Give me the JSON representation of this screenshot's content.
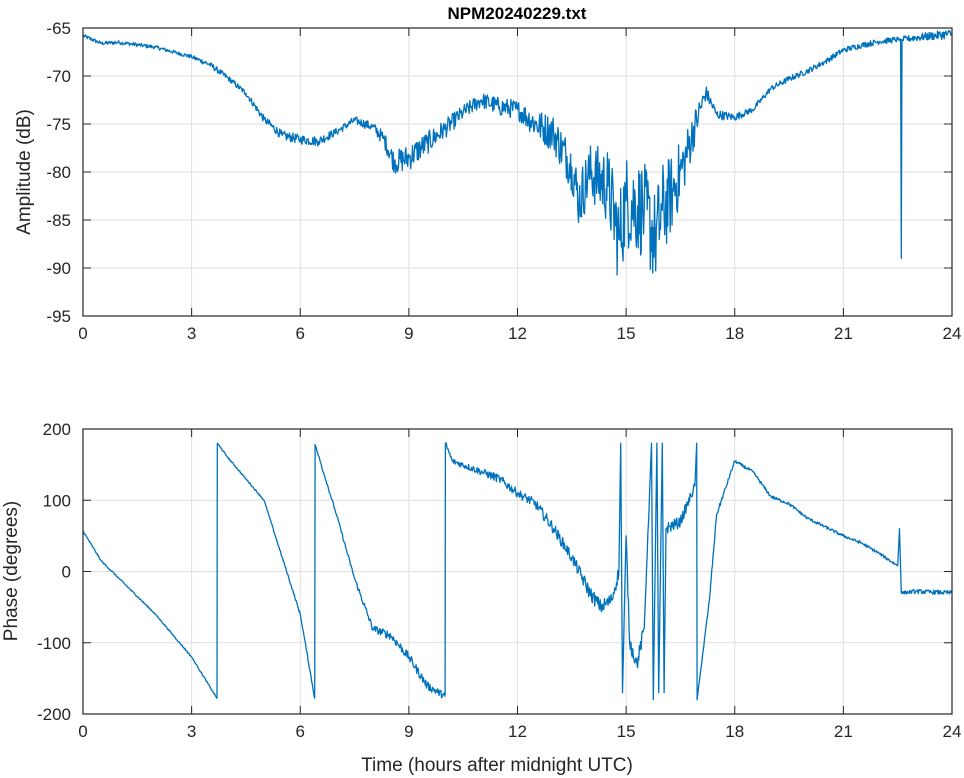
{
  "chart_data": [
    {
      "type": "line",
      "title": "NPM20240229.txt",
      "xlabel": "",
      "ylabel": "Amplitude (dB)",
      "xlim": [
        0,
        24
      ],
      "ylim": [
        -95,
        -65
      ],
      "grid": true,
      "xticks": [
        "0",
        "3",
        "6",
        "9",
        "12",
        "15",
        "18",
        "21",
        "24"
      ],
      "yticks": [
        "-65",
        "-70",
        "-75",
        "-80",
        "-85",
        "-90",
        "-95"
      ],
      "color": "#0072BD",
      "x": [
        0,
        0.5,
        1,
        2,
        3,
        3.5,
        4,
        4.5,
        5,
        5.5,
        6,
        6.5,
        7,
        7.5,
        8,
        8.3,
        8.6,
        9,
        9.5,
        10,
        10.5,
        11,
        11.5,
        12,
        12.5,
        13,
        13.5,
        13.7,
        14,
        14.5,
        14.8,
        15,
        15.5,
        15.8,
        16,
        16.3,
        16.6,
        17,
        17.2,
        17.5,
        18,
        18.5,
        19,
        19.5,
        20,
        20.5,
        21,
        21.5,
        22,
        22.5,
        22.58,
        22.6,
        22.62,
        23,
        24
      ],
      "y": [
        -65.8,
        -66.6,
        -66.5,
        -67,
        -68,
        -68.8,
        -70.2,
        -71.8,
        -74.5,
        -76.2,
        -76.6,
        -76.8,
        -75.8,
        -74.6,
        -75.3,
        -76.5,
        -79,
        -78.5,
        -77,
        -75.5,
        -73.8,
        -72.5,
        -73.2,
        -73.5,
        -75,
        -76,
        -79.5,
        -83,
        -80,
        -81.5,
        -87,
        -83,
        -84,
        -87,
        -84,
        -82,
        -79,
        -74,
        -71.7,
        -74,
        -74.3,
        -73.5,
        -71.3,
        -70.3,
        -69.5,
        -68.5,
        -67.3,
        -66.8,
        -66.4,
        -66.2,
        -66.2,
        -89,
        -66.2,
        -66,
        -65.6
      ],
      "noise": [
        0.2,
        0.2,
        0.2,
        0.2,
        0.2,
        0.3,
        0.3,
        0.3,
        0.4,
        0.5,
        0.5,
        0.5,
        0.4,
        0.4,
        0.5,
        0.8,
        1.2,
        1.4,
        1.2,
        1,
        0.8,
        0.8,
        1,
        1,
        1.5,
        2,
        2.5,
        3,
        3,
        4,
        5,
        5,
        5,
        5,
        5,
        4,
        3,
        1.5,
        0.8,
        0.5,
        0.4,
        0.3,
        0.3,
        0.3,
        0.3,
        0.3,
        0.3,
        0.3,
        0.3,
        0.3,
        0,
        0,
        0.3,
        0.4,
        0.5
      ]
    },
    {
      "type": "line",
      "title": "",
      "xlabel": "Time (hours after midnight UTC)",
      "ylabel": "Phase (degrees)",
      "xlim": [
        0,
        24
      ],
      "ylim": [
        -200,
        200
      ],
      "grid": true,
      "xticks": [
        "0",
        "3",
        "6",
        "9",
        "12",
        "15",
        "18",
        "21",
        "24"
      ],
      "yticks": [
        "200",
        "100",
        "0",
        "-100",
        "-200"
      ],
      "color": "#0072BD",
      "x": [
        0,
        0.5,
        1,
        2,
        3,
        3.7,
        3.71,
        4,
        5,
        6,
        6.4,
        6.41,
        7,
        7.5,
        8,
        8.5,
        9,
        9.5,
        10,
        10.01,
        10.2,
        11,
        11.5,
        12,
        12.5,
        13,
        13.5,
        14,
        14.3,
        14.6,
        14.8,
        14.85,
        14.9,
        15,
        15.1,
        15.3,
        15.5,
        15.7,
        15.75,
        15.85,
        15.9,
        16.0,
        16.05,
        16.1,
        16.5,
        16.9,
        16.95,
        16.96,
        17.3,
        17.5,
        18,
        18.5,
        19,
        19.5,
        20,
        21,
        21.5,
        22,
        22.5,
        22.55,
        22.6,
        23,
        24
      ],
      "y": [
        57,
        15,
        -10,
        -60,
        -120,
        -178,
        180,
        160,
        100,
        -60,
        -178,
        178,
        80,
        -10,
        -80,
        -90,
        -120,
        -160,
        -175,
        180,
        155,
        140,
        130,
        110,
        95,
        60,
        20,
        -30,
        -50,
        -40,
        0,
        180,
        -170,
        50,
        -100,
        -130,
        -80,
        180,
        -180,
        180,
        -170,
        180,
        -170,
        60,
        70,
        120,
        180,
        -180,
        -40,
        80,
        155,
        140,
        105,
        95,
        75,
        50,
        40,
        25,
        8,
        60,
        -30,
        -28,
        -30
      ],
      "noise": [
        1,
        1,
        1,
        1,
        1,
        1,
        1,
        1,
        1,
        2,
        2,
        2,
        2,
        3,
        5,
        6,
        6,
        6,
        5,
        4,
        4,
        5,
        6,
        6,
        7,
        8,
        8,
        10,
        10,
        10,
        10,
        0,
        0,
        10,
        10,
        10,
        10,
        0,
        0,
        0,
        0,
        0,
        0,
        8,
        8,
        6,
        0,
        0,
        3,
        3,
        2,
        2,
        2,
        2,
        2,
        2,
        2,
        2,
        2,
        0,
        2,
        3,
        3
      ]
    }
  ]
}
